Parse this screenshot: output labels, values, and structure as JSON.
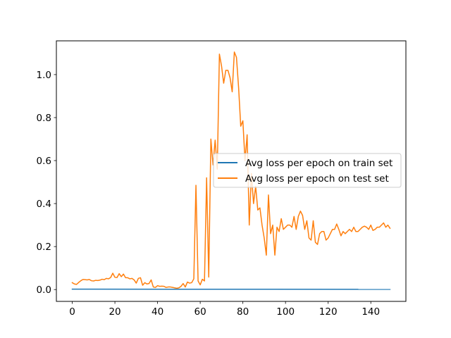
{
  "chart_data": {
    "type": "line",
    "title": "",
    "xlabel": "",
    "ylabel": "",
    "xlim": [
      -7.45,
      156.45
    ],
    "ylim": [
      -0.055,
      1.157
    ],
    "xticks": [
      0,
      20,
      40,
      60,
      80,
      100,
      120,
      140
    ],
    "yticks": [
      0.0,
      0.2,
      0.4,
      0.6,
      0.8,
      1.0
    ],
    "xtick_labels": [
      "0",
      "20",
      "40",
      "60",
      "80",
      "100",
      "120",
      "140"
    ],
    "ytick_labels": [
      "0.0",
      "0.2",
      "0.4",
      "0.6",
      "0.8",
      "1.0"
    ],
    "grid": false,
    "legend_position": "center-right",
    "series": [
      {
        "name": "Avg loss per epoch on train set",
        "color": "#1f77b4",
        "x": [
          0,
          149
        ],
        "values": [
          0.002,
          0.001
        ]
      },
      {
        "name": "Avg loss per epoch on test set",
        "color": "#ff7f0e",
        "x": [
          0,
          1,
          2,
          3,
          4,
          5,
          6,
          7,
          8,
          9,
          10,
          11,
          12,
          13,
          14,
          15,
          16,
          17,
          18,
          19,
          20,
          21,
          22,
          23,
          24,
          25,
          26,
          27,
          28,
          29,
          30,
          31,
          32,
          33,
          34,
          35,
          36,
          37,
          38,
          39,
          40,
          41,
          42,
          43,
          44,
          45,
          46,
          47,
          48,
          49,
          50,
          51,
          52,
          53,
          54,
          55,
          56,
          57,
          58,
          59,
          60,
          61,
          62,
          63,
          64,
          65,
          66,
          67,
          68,
          69,
          70,
          71,
          72,
          73,
          74,
          75,
          76,
          77,
          78,
          79,
          80,
          81,
          82,
          83,
          84,
          85,
          86,
          87,
          88,
          89,
          90,
          91,
          92,
          93,
          94,
          95,
          96,
          97,
          98,
          99,
          100,
          101,
          102,
          103,
          104,
          105,
          106,
          107,
          108,
          109,
          110,
          111,
          112,
          113,
          114,
          115,
          116,
          117,
          118,
          119,
          120,
          121,
          122,
          123,
          124,
          125,
          126,
          127,
          128,
          129,
          130,
          131,
          132,
          133,
          134,
          135,
          136,
          137,
          138,
          139,
          140,
          141,
          142,
          143,
          144,
          145,
          146,
          147,
          148,
          149
        ],
        "values": [
          0.032,
          0.026,
          0.024,
          0.033,
          0.041,
          0.047,
          0.046,
          0.045,
          0.047,
          0.041,
          0.04,
          0.043,
          0.042,
          0.044,
          0.048,
          0.046,
          0.052,
          0.05,
          0.056,
          0.076,
          0.057,
          0.056,
          0.074,
          0.06,
          0.072,
          0.055,
          0.055,
          0.05,
          0.052,
          0.045,
          0.03,
          0.052,
          0.055,
          0.02,
          0.032,
          0.026,
          0.028,
          0.045,
          0.012,
          0.01,
          0.018,
          0.015,
          0.016,
          0.015,
          0.01,
          0.012,
          0.012,
          0.01,
          0.008,
          0.006,
          0.008,
          0.015,
          0.028,
          0.012,
          0.035,
          0.03,
          0.032,
          0.05,
          0.485,
          0.04,
          0.022,
          0.048,
          0.04,
          0.52,
          0.058,
          0.7,
          0.58,
          0.695,
          0.56,
          1.095,
          1.04,
          0.96,
          1.02,
          1.02,
          0.985,
          0.92,
          1.105,
          1.08,
          0.94,
          0.76,
          0.785,
          0.6,
          0.72,
          0.3,
          0.54,
          0.4,
          0.48,
          0.37,
          0.38,
          0.3,
          0.24,
          0.16,
          0.44,
          0.26,
          0.3,
          0.16,
          0.29,
          0.27,
          0.33,
          0.28,
          0.29,
          0.3,
          0.3,
          0.29,
          0.34,
          0.28,
          0.34,
          0.365,
          0.345,
          0.28,
          0.32,
          0.24,
          0.23,
          0.32,
          0.22,
          0.21,
          0.26,
          0.27,
          0.27,
          0.23,
          0.24,
          0.26,
          0.28,
          0.28,
          0.305,
          0.28,
          0.25,
          0.27,
          0.26,
          0.27,
          0.28,
          0.27,
          0.29,
          0.27,
          0.27,
          0.28,
          0.29,
          0.295,
          0.29,
          0.28,
          0.3,
          0.275,
          0.28,
          0.29,
          0.29,
          0.3,
          0.31,
          0.29,
          0.3,
          0.285
        ]
      }
    ]
  }
}
